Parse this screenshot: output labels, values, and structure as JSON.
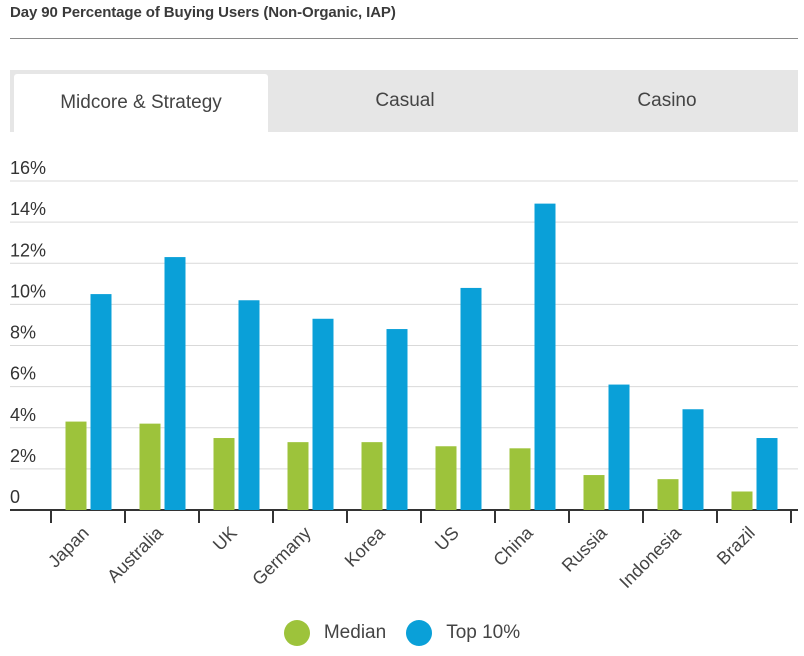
{
  "header": {
    "title": "Day 90 Percentage of Buying Users (Non-Organic, IAP)"
  },
  "tabs": [
    {
      "label": "Midcore & Strategy",
      "active": true
    },
    {
      "label": "Casual",
      "active": false
    },
    {
      "label": "Casino",
      "active": false
    }
  ],
  "colors": {
    "median": "#9dc33b",
    "top10": "#0aa0d8",
    "grid": "#d9d9d9",
    "axis": "#333333"
  },
  "chart_data": {
    "type": "bar",
    "title": "Day 90 Percentage of Buying Users (Non-Organic, IAP)",
    "categories": [
      "Japan",
      "Australia",
      "UK",
      "Germany",
      "Korea",
      "US",
      "China",
      "Russia",
      "Indonesia",
      "Brazil"
    ],
    "series": [
      {
        "name": "Median",
        "values": [
          4.3,
          4.2,
          3.5,
          3.3,
          3.3,
          3.1,
          3.0,
          1.7,
          1.5,
          0.9
        ]
      },
      {
        "name": "Top 10%",
        "values": [
          10.5,
          12.3,
          10.2,
          9.3,
          8.8,
          10.8,
          14.9,
          6.1,
          4.9,
          3.5
        ]
      }
    ],
    "yticks": [
      "0",
      "2%",
      "4%",
      "6%",
      "8%",
      "10%",
      "12%",
      "14%",
      "16%"
    ],
    "ylim": [
      0,
      16
    ],
    "grid": true,
    "legend": "bottom-center"
  },
  "legend": {
    "median": "Median",
    "top10": "Top 10%"
  }
}
